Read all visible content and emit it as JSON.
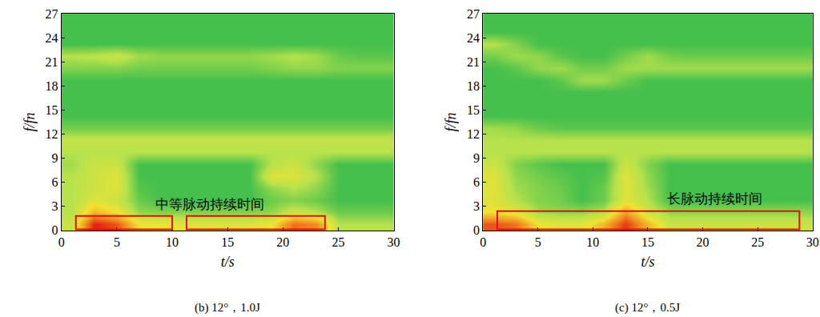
{
  "chart_data": [
    {
      "type": "heatmap",
      "caption": "(b) 12°，1.0J",
      "xlabel": "t/s",
      "ylabel": "f/fn",
      "xlim": [
        0,
        30
      ],
      "ylim": [
        0,
        27
      ],
      "xticks": [
        0,
        5,
        10,
        15,
        20,
        25,
        30
      ],
      "yticks": [
        0,
        3,
        6,
        9,
        12,
        15,
        18,
        21,
        24,
        27
      ],
      "grid": false,
      "tick_labels": true,
      "x": [
        1,
        3,
        5,
        7,
        9,
        11,
        13,
        15,
        17,
        19,
        21,
        23,
        25,
        27,
        29
      ],
      "y": [
        0.75,
        2.25,
        3.75,
        5.25,
        6.75,
        8.25,
        9.75,
        11.25,
        12.75,
        14.25,
        15.75,
        17.25,
        18.75,
        20.25,
        21.75,
        23.25,
        24.75,
        26.25
      ],
      "zlim": [
        0,
        1
      ],
      "z": [
        [
          0.5,
          1.0,
          0.9,
          0.6,
          0.6,
          0.55,
          0.55,
          0.55,
          0.55,
          0.6,
          0.85,
          0.8,
          0.45,
          0.45,
          0.45
        ],
        [
          0.45,
          0.7,
          0.6,
          0.4,
          0.38,
          0.38,
          0.38,
          0.38,
          0.38,
          0.4,
          0.5,
          0.45,
          0.35,
          0.35,
          0.35
        ],
        [
          0.45,
          0.55,
          0.5,
          0.35,
          0.3,
          0.3,
          0.3,
          0.3,
          0.3,
          0.35,
          0.38,
          0.35,
          0.3,
          0.3,
          0.3
        ],
        [
          0.45,
          0.5,
          0.55,
          0.32,
          0.3,
          0.3,
          0.3,
          0.3,
          0.3,
          0.4,
          0.45,
          0.4,
          0.3,
          0.3,
          0.3
        ],
        [
          0.45,
          0.5,
          0.55,
          0.3,
          0.3,
          0.3,
          0.3,
          0.3,
          0.3,
          0.55,
          0.55,
          0.45,
          0.3,
          0.3,
          0.3
        ],
        [
          0.42,
          0.5,
          0.5,
          0.3,
          0.3,
          0.3,
          0.3,
          0.3,
          0.3,
          0.45,
          0.5,
          0.4,
          0.3,
          0.3,
          0.3
        ],
        [
          0.45,
          0.45,
          0.45,
          0.45,
          0.45,
          0.45,
          0.45,
          0.45,
          0.45,
          0.45,
          0.45,
          0.45,
          0.45,
          0.45,
          0.45
        ],
        [
          0.48,
          0.48,
          0.48,
          0.48,
          0.48,
          0.48,
          0.48,
          0.48,
          0.48,
          0.48,
          0.48,
          0.48,
          0.48,
          0.48,
          0.48
        ],
        [
          0.36,
          0.36,
          0.36,
          0.36,
          0.36,
          0.36,
          0.36,
          0.36,
          0.36,
          0.36,
          0.36,
          0.36,
          0.36,
          0.36,
          0.36
        ],
        [
          0.3,
          0.3,
          0.3,
          0.3,
          0.3,
          0.3,
          0.3,
          0.3,
          0.3,
          0.3,
          0.3,
          0.3,
          0.3,
          0.3,
          0.3
        ],
        [
          0.3,
          0.3,
          0.3,
          0.3,
          0.3,
          0.3,
          0.3,
          0.3,
          0.3,
          0.3,
          0.3,
          0.3,
          0.3,
          0.3,
          0.3
        ],
        [
          0.3,
          0.3,
          0.3,
          0.3,
          0.3,
          0.3,
          0.3,
          0.3,
          0.3,
          0.3,
          0.3,
          0.3,
          0.3,
          0.3,
          0.3
        ],
        [
          0.3,
          0.3,
          0.3,
          0.3,
          0.3,
          0.3,
          0.3,
          0.3,
          0.3,
          0.3,
          0.3,
          0.3,
          0.3,
          0.3,
          0.3
        ],
        [
          0.38,
          0.38,
          0.38,
          0.36,
          0.36,
          0.36,
          0.36,
          0.36,
          0.36,
          0.38,
          0.4,
          0.4,
          0.38,
          0.38,
          0.38
        ],
        [
          0.45,
          0.46,
          0.5,
          0.42,
          0.4,
          0.4,
          0.4,
          0.4,
          0.4,
          0.42,
          0.45,
          0.42,
          0.35,
          0.33,
          0.33
        ],
        [
          0.3,
          0.3,
          0.3,
          0.3,
          0.3,
          0.3,
          0.3,
          0.3,
          0.3,
          0.3,
          0.3,
          0.3,
          0.3,
          0.3,
          0.3
        ],
        [
          0.3,
          0.3,
          0.3,
          0.3,
          0.3,
          0.3,
          0.3,
          0.3,
          0.3,
          0.3,
          0.3,
          0.3,
          0.3,
          0.3,
          0.3
        ],
        [
          0.3,
          0.3,
          0.3,
          0.3,
          0.3,
          0.3,
          0.3,
          0.3,
          0.3,
          0.3,
          0.3,
          0.3,
          0.3,
          0.3,
          0.3
        ]
      ],
      "highlights": [
        {
          "x": [
            1.3,
            10
          ],
          "y": [
            0.15,
            1.8
          ]
        },
        {
          "x": [
            11.3,
            23.8
          ],
          "y": [
            0.15,
            1.8
          ]
        }
      ],
      "annotations": [
        {
          "text": "中等脉动持续时间",
          "x": 13.4,
          "y": 3.3
        }
      ]
    },
    {
      "type": "heatmap",
      "caption": "(c) 12°，0.5J",
      "xlabel": "t/s",
      "ylabel": "f/fn",
      "xlim": [
        0,
        30
      ],
      "ylim": [
        0,
        27
      ],
      "xticks": [
        0,
        5,
        10,
        15,
        20,
        25,
        30
      ],
      "yticks": [
        0,
        3,
        6,
        9,
        12,
        15,
        18,
        21,
        24,
        27
      ],
      "grid": false,
      "tick_labels": true,
      "x": [
        1,
        3,
        5,
        7,
        9,
        11,
        13,
        15,
        17,
        19,
        21,
        23,
        25,
        27,
        29
      ],
      "y": [
        0.75,
        2.25,
        3.75,
        5.25,
        6.75,
        8.25,
        9.75,
        11.25,
        12.75,
        14.25,
        15.75,
        17.25,
        18.75,
        20.25,
        21.75,
        23.25,
        24.75,
        26.25
      ],
      "zlim": [
        0,
        1
      ],
      "z": [
        [
          0.9,
          0.85,
          0.6,
          0.55,
          0.55,
          0.7,
          0.95,
          0.7,
          0.5,
          0.5,
          0.5,
          0.5,
          0.5,
          0.5,
          0.5
        ],
        [
          0.6,
          0.55,
          0.42,
          0.4,
          0.4,
          0.45,
          0.75,
          0.5,
          0.4,
          0.4,
          0.4,
          0.4,
          0.4,
          0.4,
          0.4
        ],
        [
          0.55,
          0.45,
          0.38,
          0.36,
          0.3,
          0.35,
          0.55,
          0.45,
          0.3,
          0.3,
          0.3,
          0.3,
          0.3,
          0.3,
          0.3
        ],
        [
          0.55,
          0.42,
          0.38,
          0.35,
          0.3,
          0.35,
          0.55,
          0.42,
          0.3,
          0.3,
          0.3,
          0.3,
          0.3,
          0.3,
          0.3
        ],
        [
          0.55,
          0.4,
          0.36,
          0.33,
          0.3,
          0.32,
          0.55,
          0.4,
          0.3,
          0.3,
          0.3,
          0.3,
          0.3,
          0.3,
          0.3
        ],
        [
          0.5,
          0.38,
          0.33,
          0.3,
          0.3,
          0.3,
          0.5,
          0.38,
          0.3,
          0.3,
          0.3,
          0.3,
          0.3,
          0.3,
          0.3
        ],
        [
          0.45,
          0.45,
          0.45,
          0.45,
          0.45,
          0.45,
          0.45,
          0.45,
          0.45,
          0.45,
          0.45,
          0.45,
          0.45,
          0.45,
          0.45
        ],
        [
          0.45,
          0.45,
          0.45,
          0.45,
          0.45,
          0.45,
          0.45,
          0.45,
          0.45,
          0.45,
          0.45,
          0.45,
          0.45,
          0.45,
          0.45
        ],
        [
          0.42,
          0.4,
          0.35,
          0.33,
          0.33,
          0.33,
          0.33,
          0.33,
          0.33,
          0.33,
          0.33,
          0.33,
          0.33,
          0.33,
          0.33
        ],
        [
          0.3,
          0.3,
          0.3,
          0.3,
          0.3,
          0.3,
          0.3,
          0.3,
          0.3,
          0.3,
          0.3,
          0.3,
          0.3,
          0.3,
          0.3
        ],
        [
          0.3,
          0.3,
          0.3,
          0.3,
          0.3,
          0.3,
          0.3,
          0.3,
          0.3,
          0.3,
          0.3,
          0.3,
          0.3,
          0.3,
          0.3
        ],
        [
          0.3,
          0.3,
          0.3,
          0.3,
          0.3,
          0.3,
          0.3,
          0.3,
          0.3,
          0.3,
          0.3,
          0.3,
          0.3,
          0.3,
          0.3
        ],
        [
          0.3,
          0.3,
          0.3,
          0.33,
          0.42,
          0.42,
          0.35,
          0.3,
          0.3,
          0.3,
          0.3,
          0.3,
          0.3,
          0.3,
          0.3
        ],
        [
          0.3,
          0.33,
          0.4,
          0.42,
          0.36,
          0.36,
          0.42,
          0.42,
          0.42,
          0.42,
          0.42,
          0.42,
          0.42,
          0.42,
          0.42
        ],
        [
          0.36,
          0.42,
          0.4,
          0.33,
          0.3,
          0.3,
          0.36,
          0.42,
          0.36,
          0.35,
          0.35,
          0.35,
          0.35,
          0.35,
          0.35
        ],
        [
          0.45,
          0.38,
          0.3,
          0.3,
          0.3,
          0.3,
          0.3,
          0.3,
          0.3,
          0.3,
          0.3,
          0.3,
          0.3,
          0.3,
          0.3
        ],
        [
          0.3,
          0.3,
          0.3,
          0.3,
          0.3,
          0.3,
          0.3,
          0.3,
          0.3,
          0.3,
          0.3,
          0.3,
          0.3,
          0.3,
          0.3
        ],
        [
          0.3,
          0.3,
          0.3,
          0.3,
          0.3,
          0.3,
          0.3,
          0.3,
          0.3,
          0.3,
          0.3,
          0.3,
          0.3,
          0.3,
          0.3
        ]
      ],
      "highlights": [
        {
          "x": [
            1.3,
            28.8
          ],
          "y": [
            0.15,
            2.4
          ]
        }
      ],
      "annotations": [
        {
          "text": "长脉动持续时间",
          "x": 21.1,
          "y": 4.0
        }
      ]
    }
  ]
}
